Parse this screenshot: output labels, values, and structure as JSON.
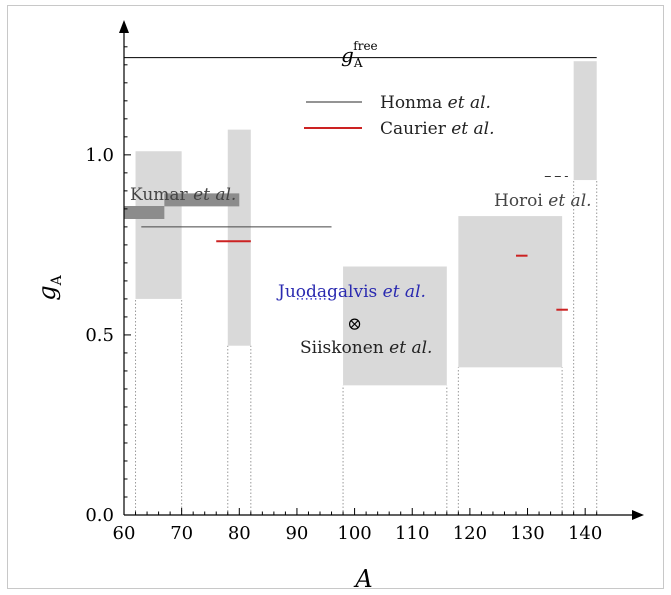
{
  "chart_data": {
    "type": "bar",
    "xlabel": "A",
    "ylabel": "g",
    "ylabel_sub": "A",
    "xlim": [
      60,
      145
    ],
    "ylim": [
      0,
      1.33
    ],
    "xticks": [
      60,
      70,
      80,
      90,
      100,
      110,
      120,
      130,
      140
    ],
    "xtick_labels": [
      "60",
      "70",
      "80",
      "90",
      "100",
      "110",
      "120",
      "130",
      "140"
    ],
    "yticks": [
      0.0,
      0.5,
      1.0
    ],
    "ytick_labels": [
      "0.0",
      "0.5",
      "1.0"
    ],
    "gA_free": {
      "value": 1.27,
      "label_main": "g",
      "label_sub": "A",
      "label_sup": "free"
    },
    "ranges": [
      {
        "x": [
          62,
          70
        ],
        "y": [
          0.6,
          1.01
        ]
      },
      {
        "x": [
          78,
          82
        ],
        "y": [
          0.47,
          1.07
        ]
      },
      {
        "x": [
          98,
          116
        ],
        "y": [
          0.36,
          0.69
        ]
      },
      {
        "x": [
          118,
          136
        ],
        "y": [
          0.41,
          0.83
        ]
      },
      {
        "x": [
          138,
          142
        ],
        "y": [
          0.93,
          1.26
        ]
      }
    ],
    "kumar_bars": [
      {
        "x": [
          60,
          67
        ],
        "y": 0.84
      },
      {
        "x": [
          67,
          80
        ],
        "y": 0.875
      }
    ],
    "honma_lines": [
      {
        "x": [
          63,
          96
        ],
        "y": 0.8
      }
    ],
    "caurier_marks": [
      {
        "x": [
          76,
          82
        ],
        "y": 0.76
      },
      {
        "x": [
          128,
          130
        ],
        "y": 0.72
      },
      {
        "x": [
          135,
          137
        ],
        "y": 0.57
      }
    ],
    "horoi_mark": {
      "x": [
        133,
        137
      ],
      "y": 0.94
    },
    "juodagalvis_mark": {
      "x": [
        90,
        96
      ],
      "y": 0.6
    },
    "siiskonen_point": {
      "x": 100,
      "y": 0.53
    },
    "legend": [
      {
        "label": "Honma",
        "suffix": "et al.",
        "color": "#555555"
      },
      {
        "label": "Caurier",
        "suffix": "et al.",
        "color": "#cc2222"
      }
    ],
    "annotations": [
      {
        "id": "kumar",
        "text": "Kumar",
        "suffix": "et al.",
        "color": "#444444"
      },
      {
        "id": "horoi",
        "text": "Horoi",
        "suffix": "et al.",
        "color": "#444444"
      },
      {
        "id": "juodagalvis",
        "text": "Juodagalvis",
        "suffix": "et al.",
        "color": "#2a2ab0"
      },
      {
        "id": "siiskonen",
        "text": "Siiskonen",
        "suffix": "et al.",
        "color": "#222222"
      }
    ],
    "colors": {
      "range_fill": "#d9d9d9",
      "kumar": "#8c8c8c",
      "honma": "#444444",
      "caurier": "#cc2222",
      "juodagalvis": "#3333cc",
      "axis": "#000000"
    }
  }
}
